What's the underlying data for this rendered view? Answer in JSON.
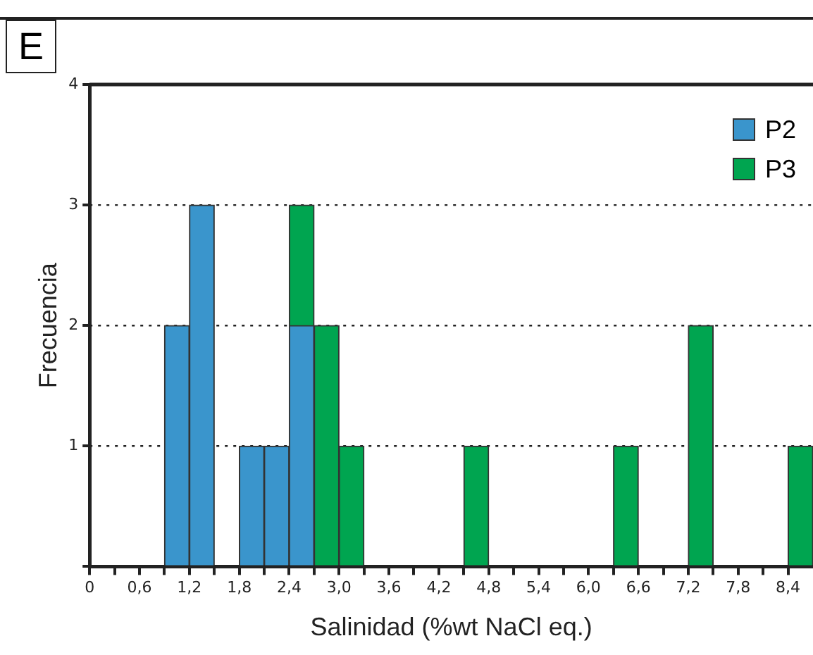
{
  "chart_data": {
    "type": "bar",
    "xlabel": "Salinidad (%wt NaCl eq.)",
    "ylabel": "Frecuencia",
    "annotations": [
      "E"
    ],
    "x": [
      1.05,
      1.35,
      1.95,
      2.25,
      2.55,
      2.85,
      3.15,
      4.65,
      6.45,
      7.35,
      8.55
    ],
    "series": [
      {
        "name": "P2",
        "color": "#3a95cc",
        "values": [
          2,
          3,
          1,
          1,
          2,
          0,
          0,
          0,
          0,
          0,
          0
        ]
      },
      {
        "name": "P3",
        "color": "#00a550",
        "values": [
          0,
          0,
          0,
          0,
          1,
          2,
          1,
          1,
          1,
          2,
          1
        ]
      }
    ],
    "stacked": true,
    "xlim": [
      0,
      8.7
    ],
    "ylim": [
      0,
      4
    ],
    "xticks": [
      0,
      {
        "value": 0.3,
        "label": null
      },
      {
        "value": 0.6,
        "label": "0,6"
      },
      {
        "value": 0.9,
        "label": null
      },
      {
        "value": 1.2,
        "label": "1,2"
      },
      {
        "value": 1.5,
        "label": null
      },
      {
        "value": 1.8,
        "label": "1,8"
      },
      {
        "value": 2.1,
        "label": null
      },
      {
        "value": 2.4,
        "label": "2,4"
      },
      {
        "value": 2.7,
        "label": null
      },
      {
        "value": 3.0,
        "label": "3,0"
      },
      {
        "value": 3.3,
        "label": null
      },
      {
        "value": 3.6,
        "label": "3,6"
      },
      {
        "value": 3.9,
        "label": null
      },
      {
        "value": 4.2,
        "label": "4,2"
      },
      {
        "value": 4.5,
        "label": null
      },
      {
        "value": 4.8,
        "label": "4,8"
      },
      {
        "value": 5.1,
        "label": null
      },
      {
        "value": 5.4,
        "label": "5,4"
      },
      {
        "value": 5.7,
        "label": null
      },
      {
        "value": 6.0,
        "label": "6,0"
      },
      {
        "value": 6.3,
        "label": null
      },
      {
        "value": 6.6,
        "label": "6,6"
      },
      {
        "value": 6.9,
        "label": null
      },
      {
        "value": 7.2,
        "label": "7,2"
      },
      {
        "value": 7.5,
        "label": null
      },
      {
        "value": 7.8,
        "label": "7,8"
      },
      {
        "value": 8.1,
        "label": null
      },
      {
        "value": 8.4,
        "label": "8,4"
      }
    ],
    "yticks": [
      {
        "value": 0,
        "label": null
      },
      1,
      2,
      3,
      4
    ],
    "grid": "y",
    "legend": "top right"
  }
}
